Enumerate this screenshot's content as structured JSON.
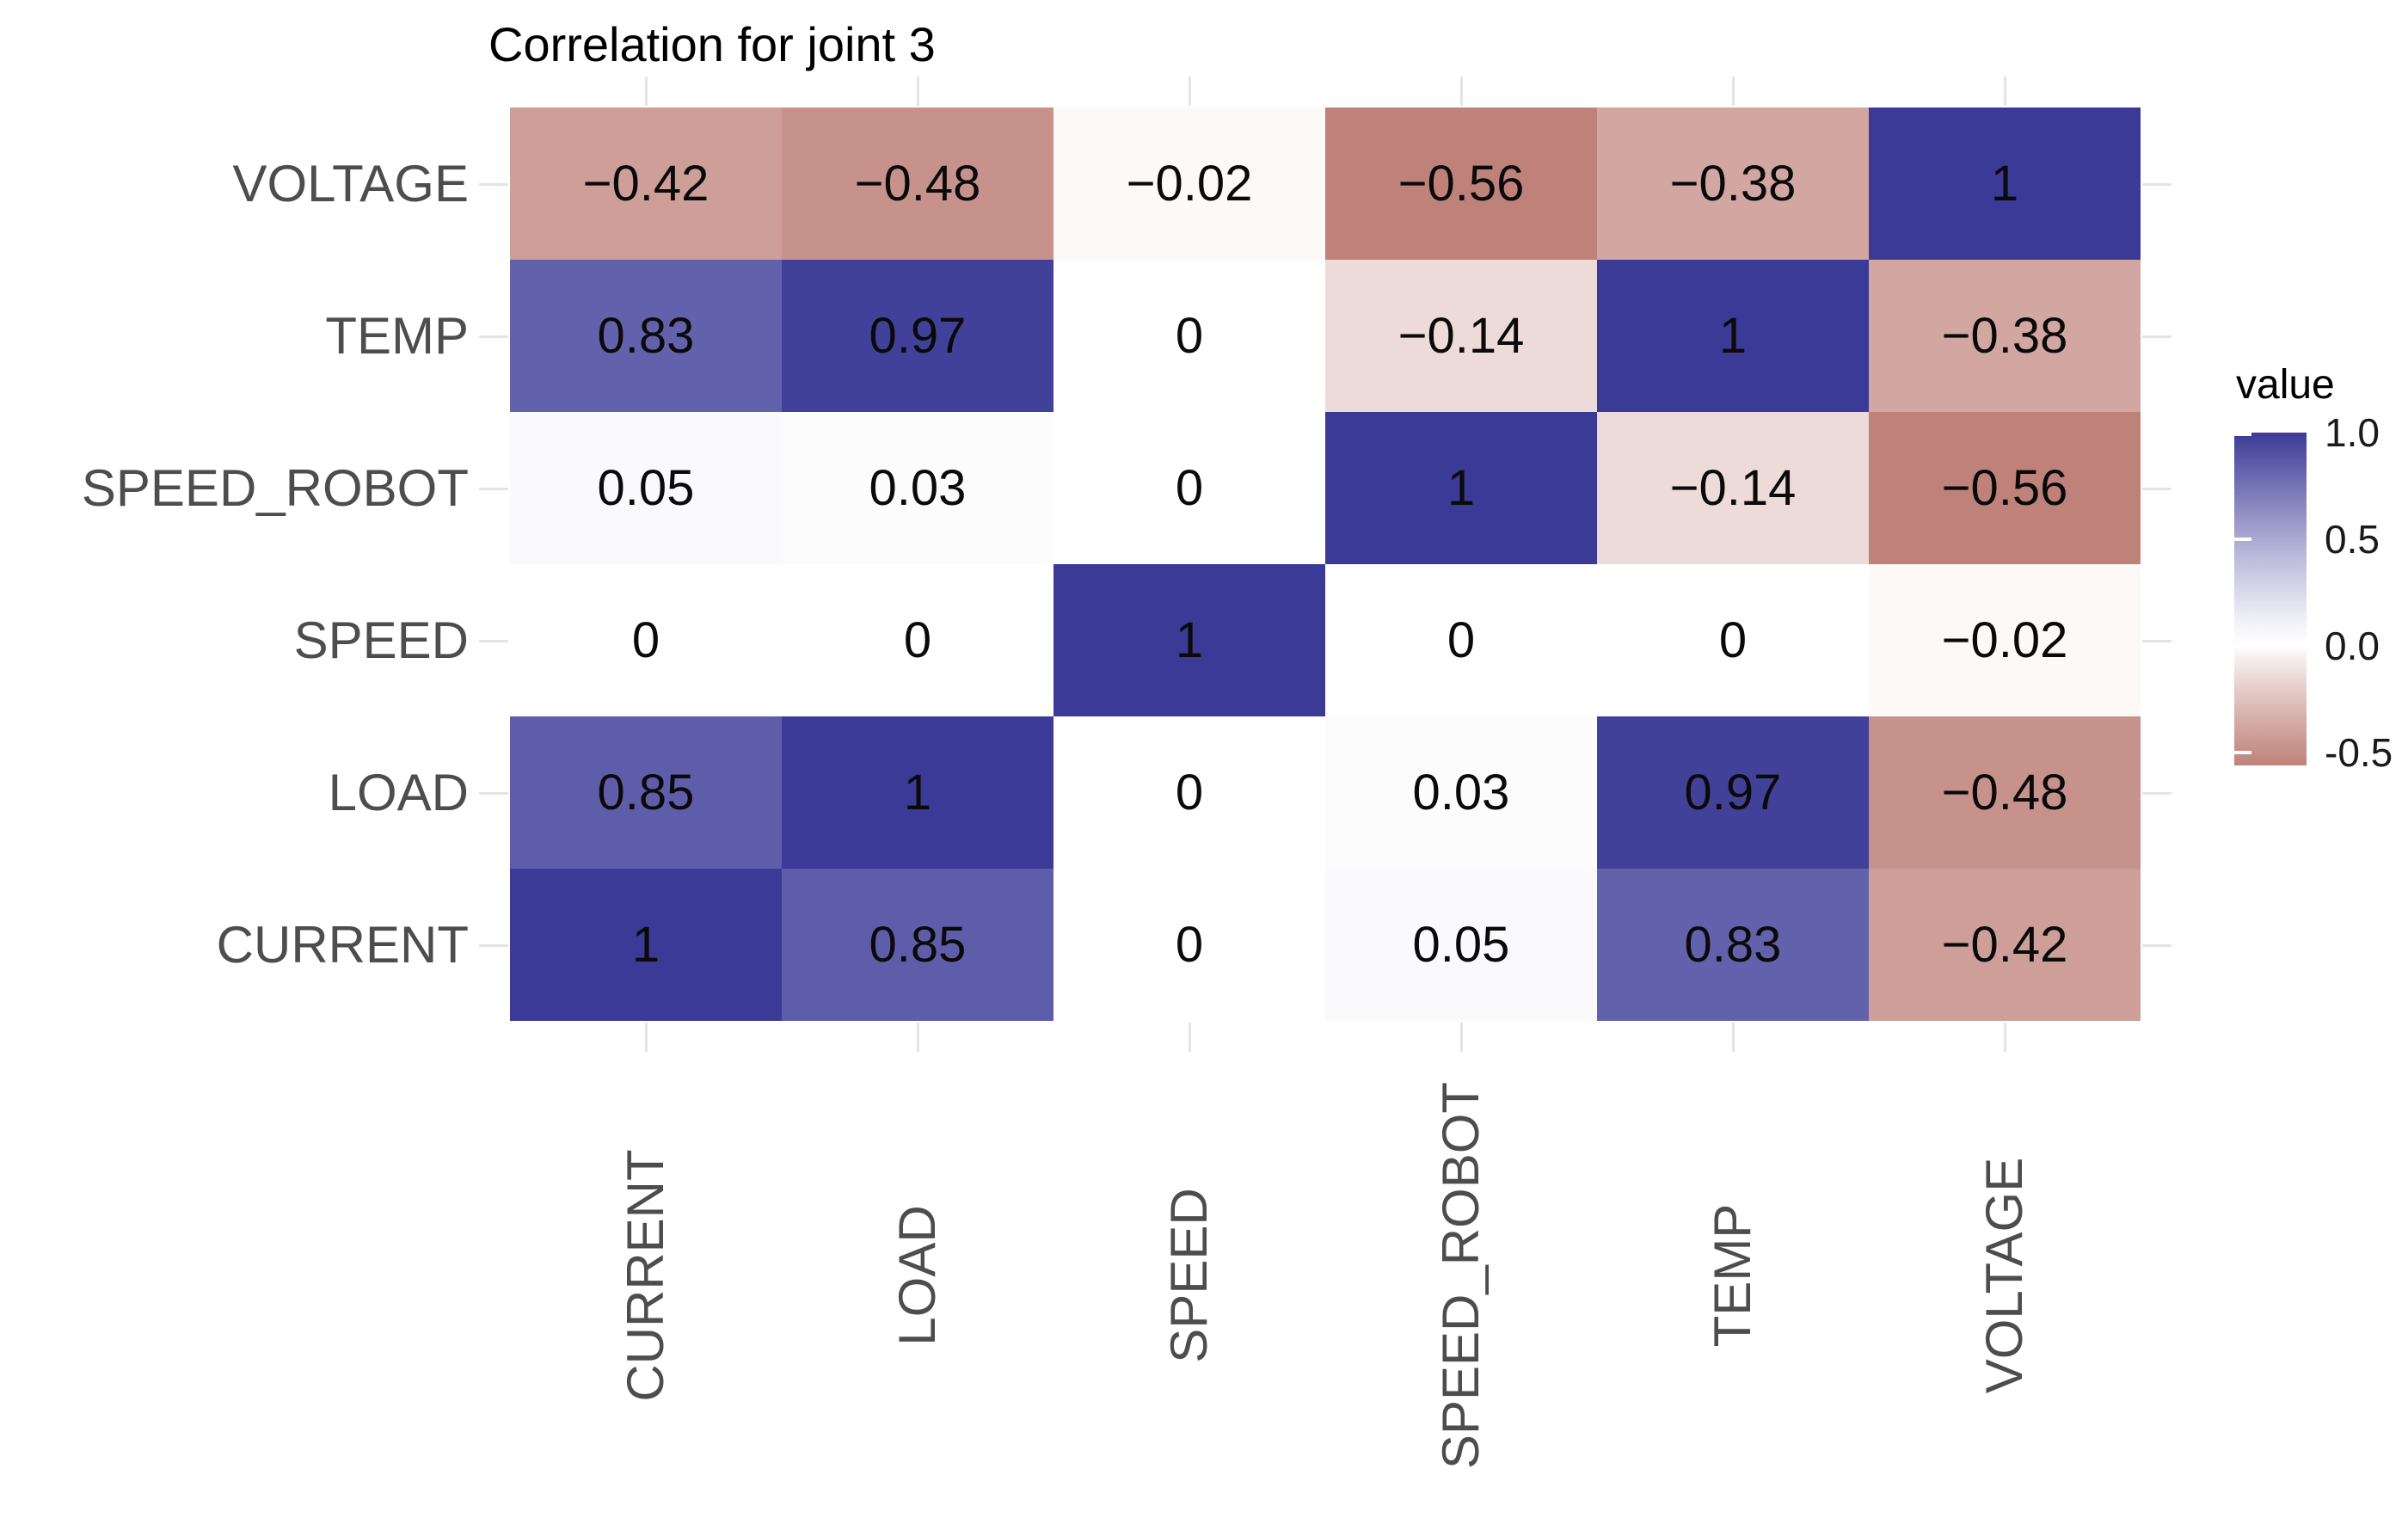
{
  "chart_data": {
    "type": "heatmap",
    "title": "Correlation for joint 3",
    "x_categories": [
      "CURRENT",
      "LOAD",
      "SPEED",
      "SPEED_ROBOT",
      "TEMP",
      "VOLTAGE"
    ],
    "y_categories_top_to_bottom": [
      "VOLTAGE",
      "TEMP",
      "SPEED_ROBOT",
      "SPEED",
      "LOAD",
      "CURRENT"
    ],
    "matrix_rows_top_to_bottom": [
      [
        -0.42,
        -0.48,
        -0.02,
        -0.56,
        -0.38,
        1
      ],
      [
        0.83,
        0.97,
        0,
        -0.14,
        1,
        -0.38
      ],
      [
        0.05,
        0.03,
        0,
        1,
        -0.14,
        -0.56
      ],
      [
        0,
        0,
        1,
        0,
        0,
        -0.02
      ],
      [
        0.85,
        1,
        0,
        0.03,
        0.97,
        -0.48
      ],
      [
        1,
        0.85,
        0,
        0.05,
        0.83,
        -0.42
      ]
    ],
    "value_domain": [
      -0.56,
      1
    ],
    "legend": {
      "title": "value",
      "tick_values": [
        1.0,
        0.5,
        0.0,
        -0.5
      ],
      "tick_labels": [
        "1.0",
        "0.5",
        "0.0",
        "-0.5"
      ],
      "position": "right"
    },
    "colors": {
      "high": "#3B3A96",
      "mid": "#FFFFFF",
      "low_at_min": "#BF827A",
      "axis_text": "#4D4D4D",
      "title_text": "#000000",
      "cell_text": "#0A0A0A",
      "tick_mark": "#E4E4E4",
      "background": "#FFFFFF"
    },
    "layout_hints": {
      "grid": "off",
      "x_axis_label_rotation_deg": 90,
      "minus_sign_glyph": "−"
    }
  }
}
